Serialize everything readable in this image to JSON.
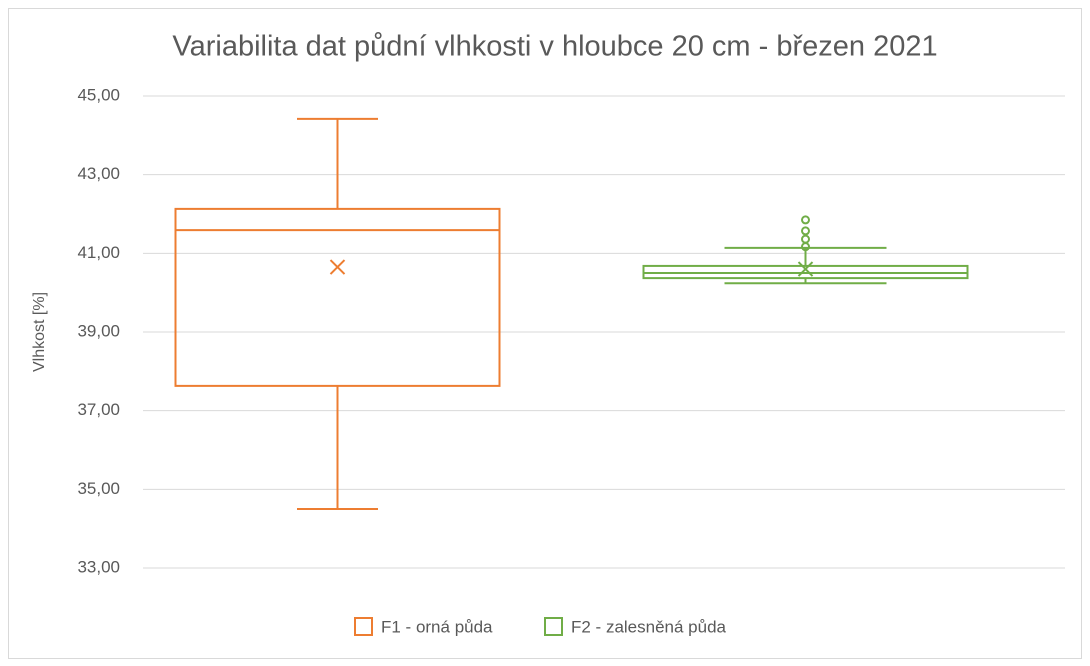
{
  "chart_data": {
    "type": "box",
    "title": "Variabilita dat půdní vlhkosti v hloubce 20 cm - březen 2021",
    "y_label": "Vlhkost [%]",
    "ylim": [
      33,
      45
    ],
    "yticks": [
      {
        "value": 33,
        "label": "33,00"
      },
      {
        "value": 35,
        "label": "35,00"
      },
      {
        "value": 37,
        "label": "37,00"
      },
      {
        "value": 39,
        "label": "39,00"
      },
      {
        "value": 41,
        "label": "41,00"
      },
      {
        "value": 43,
        "label": "43,00"
      },
      {
        "value": 45,
        "label": "45,00"
      }
    ],
    "grid": true,
    "legend": "bottom",
    "series": [
      {
        "name": "F1 - orná půda",
        "color": "#ed7d31",
        "min": 34.5,
        "q1": 37.63,
        "median": 41.59,
        "q3": 42.13,
        "max": 44.42,
        "mean": 40.65,
        "outliers": []
      },
      {
        "name": "F2 - zalesněná půda",
        "color": "#70ad47",
        "min": 40.24,
        "q1": 40.37,
        "median": 40.5,
        "q3": 40.68,
        "max": 41.14,
        "mean": 40.6,
        "outliers": [
          41.85,
          41.57,
          41.36,
          41.17
        ]
      }
    ]
  }
}
